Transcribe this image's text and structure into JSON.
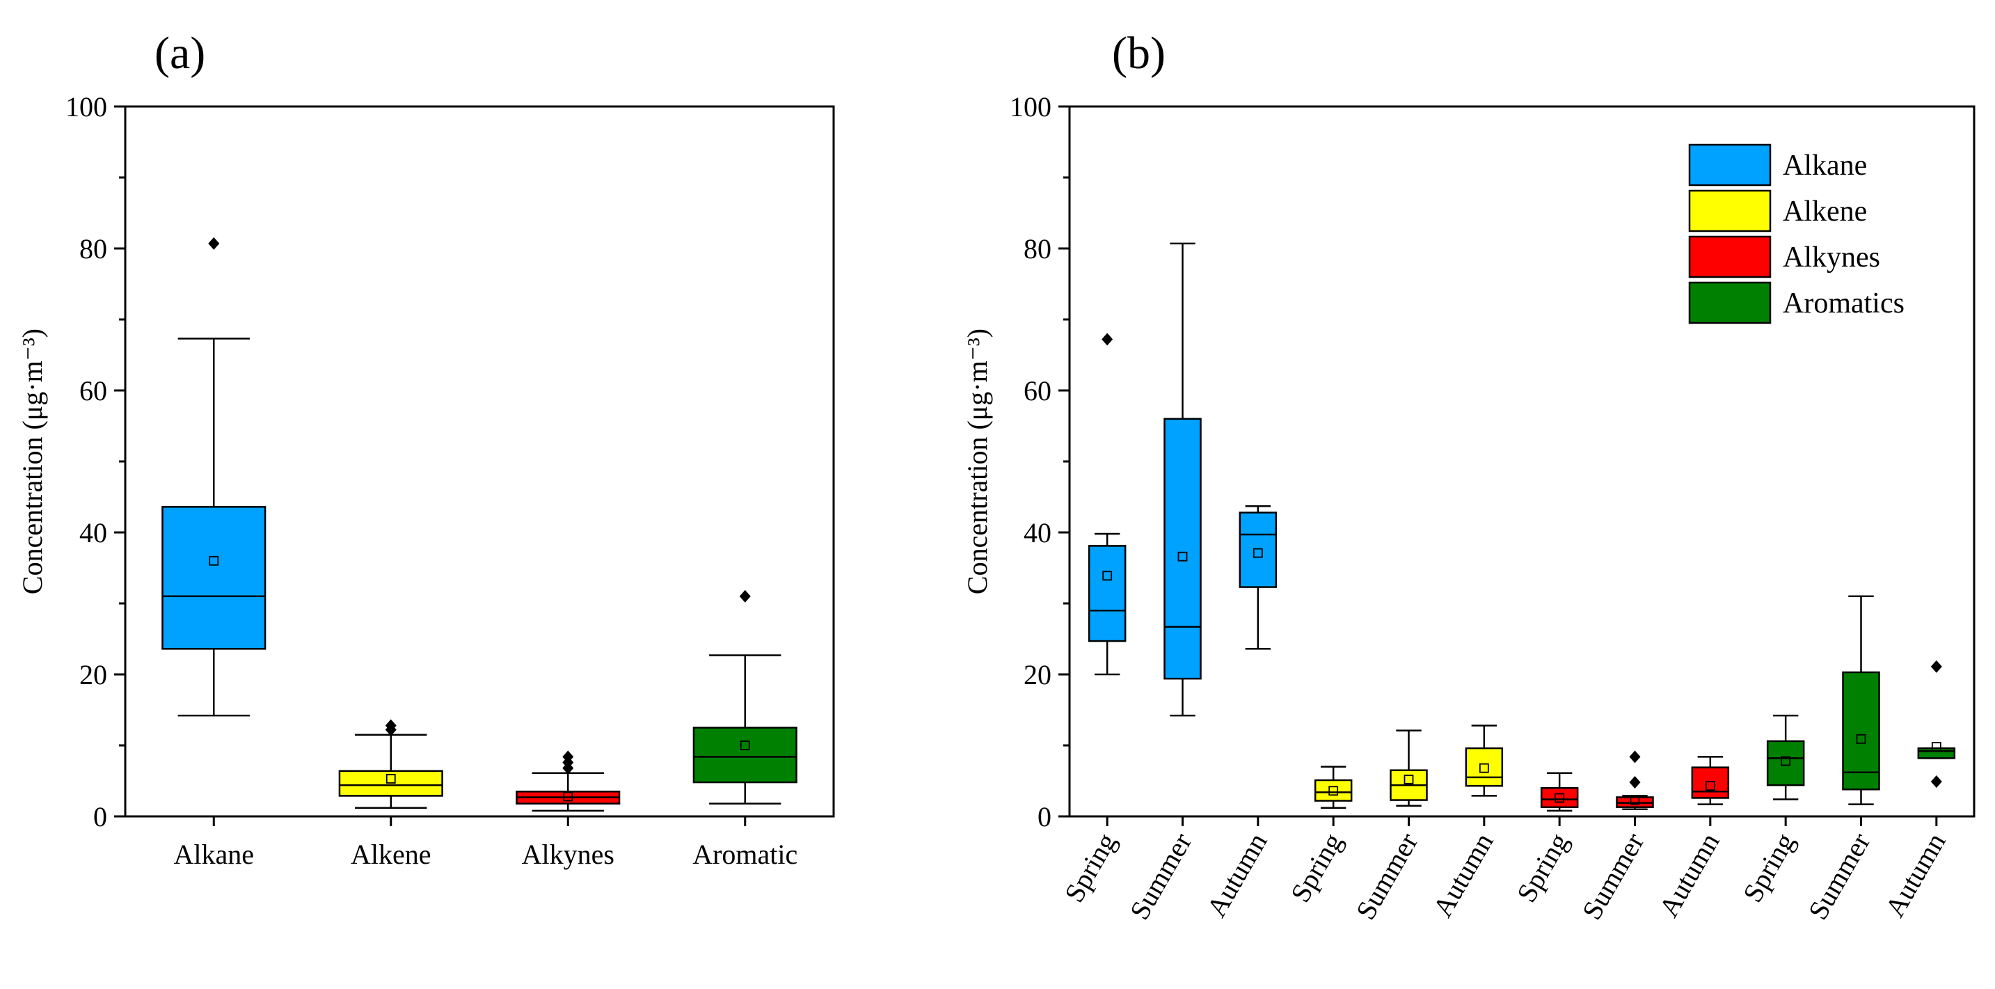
{
  "colors": {
    "Alkane": "#00a2ff",
    "Alkene": "#ffff00",
    "Alkynes": "#ff0000",
    "Aromatics": "#008000"
  },
  "chart_data": [
    {
      "type": "box",
      "panel_label": "(a)",
      "title": "",
      "xlabel": "",
      "ylabel": "Concentration (μg·m⁻³)",
      "ylim": [
        0,
        100
      ],
      "yticks": [
        0,
        20,
        40,
        60,
        80,
        100
      ],
      "categories": [
        "Alkane",
        "Alkene",
        "Alkynes",
        "Aromatic"
      ],
      "boxes": [
        {
          "category": "Alkane",
          "group": "Alkane",
          "min": 14.2,
          "q1": 23.6,
          "median": 31.0,
          "q3": 43.6,
          "max": 67.3,
          "mean": 36.0,
          "outliers": [
            80.7
          ]
        },
        {
          "category": "Alkene",
          "group": "Alkene",
          "min": 1.2,
          "q1": 2.9,
          "median": 4.4,
          "q3": 6.4,
          "max": 11.5,
          "mean": 5.3,
          "outliers": [
            12.2,
            12.8
          ]
        },
        {
          "category": "Alkynes",
          "group": "Alkynes",
          "min": 0.8,
          "q1": 1.8,
          "median": 2.7,
          "q3": 3.5,
          "max": 6.1,
          "mean": 2.8,
          "outliers": [
            6.8,
            7.6,
            8.4
          ]
        },
        {
          "category": "Aromatic",
          "group": "Aromatics",
          "min": 1.8,
          "q1": 4.8,
          "median": 8.4,
          "q3": 12.5,
          "max": 22.7,
          "mean": 10.0,
          "outliers": [
            31.0
          ]
        }
      ]
    },
    {
      "type": "box",
      "panel_label": "(b)",
      "title": "",
      "xlabel": "",
      "ylabel": "Concentration (μg·m⁻³)",
      "ylim": [
        0,
        100
      ],
      "yticks": [
        0,
        20,
        40,
        60,
        80,
        100
      ],
      "legend": {
        "position": "top-right",
        "entries": [
          "Alkane",
          "Alkene",
          "Alkynes",
          "Aromatics"
        ]
      },
      "categories": [
        "Spring",
        "Summer",
        "Autumn",
        "Spring",
        "Summer",
        "Autumn",
        "Spring",
        "Summer",
        "Autumn",
        "Spring",
        "Summer",
        "Autumn"
      ],
      "boxes": [
        {
          "category": "Spring",
          "group": "Alkane",
          "min": 20.0,
          "q1": 24.7,
          "median": 29.0,
          "q3": 38.1,
          "max": 39.8,
          "mean": 33.9,
          "outliers": [
            67.2
          ]
        },
        {
          "category": "Summer",
          "group": "Alkane",
          "min": 14.2,
          "q1": 19.4,
          "median": 26.7,
          "q3": 56.0,
          "max": 80.7,
          "mean": 36.6,
          "outliers": []
        },
        {
          "category": "Autumn",
          "group": "Alkane",
          "min": 23.6,
          "q1": 32.3,
          "median": 39.7,
          "q3": 42.8,
          "max": 43.7,
          "mean": 37.1,
          "outliers": []
        },
        {
          "category": "Spring",
          "group": "Alkene",
          "min": 1.2,
          "q1": 2.2,
          "median": 3.4,
          "q3": 5.1,
          "max": 7.0,
          "mean": 3.6,
          "outliers": []
        },
        {
          "category": "Summer",
          "group": "Alkene",
          "min": 1.5,
          "q1": 2.3,
          "median": 4.4,
          "q3": 6.5,
          "max": 12.1,
          "mean": 5.2,
          "outliers": []
        },
        {
          "category": "Autumn",
          "group": "Alkene",
          "min": 2.9,
          "q1": 4.3,
          "median": 5.5,
          "q3": 9.6,
          "max": 12.8,
          "mean": 6.8,
          "outliers": []
        },
        {
          "category": "Spring",
          "group": "Alkynes",
          "min": 0.8,
          "q1": 1.3,
          "median": 2.4,
          "q3": 4.0,
          "max": 6.1,
          "mean": 2.6,
          "outliers": []
        },
        {
          "category": "Summer",
          "group": "Alkynes",
          "min": 1.0,
          "q1": 1.3,
          "median": 1.9,
          "q3": 2.7,
          "max": 2.9,
          "mean": 2.3,
          "outliers": [
            4.8,
            8.4
          ]
        },
        {
          "category": "Autumn",
          "group": "Alkynes",
          "min": 1.7,
          "q1": 2.6,
          "median": 3.5,
          "q3": 6.9,
          "max": 8.4,
          "mean": 4.3,
          "outliers": []
        },
        {
          "category": "Spring",
          "group": "Aromatics",
          "min": 2.4,
          "q1": 4.4,
          "median": 8.2,
          "q3": 10.6,
          "max": 14.2,
          "mean": 7.8,
          "outliers": []
        },
        {
          "category": "Summer",
          "group": "Aromatics",
          "min": 1.7,
          "q1": 3.8,
          "median": 6.2,
          "q3": 20.3,
          "max": 31.0,
          "mean": 10.9,
          "outliers": []
        },
        {
          "category": "Autumn",
          "group": "Aromatics",
          "min": 8.2,
          "q1": 8.2,
          "median": 9.2,
          "q3": 9.6,
          "max": 9.6,
          "mean": 9.8,
          "outliers": [
            21.1,
            4.9
          ]
        }
      ]
    }
  ]
}
